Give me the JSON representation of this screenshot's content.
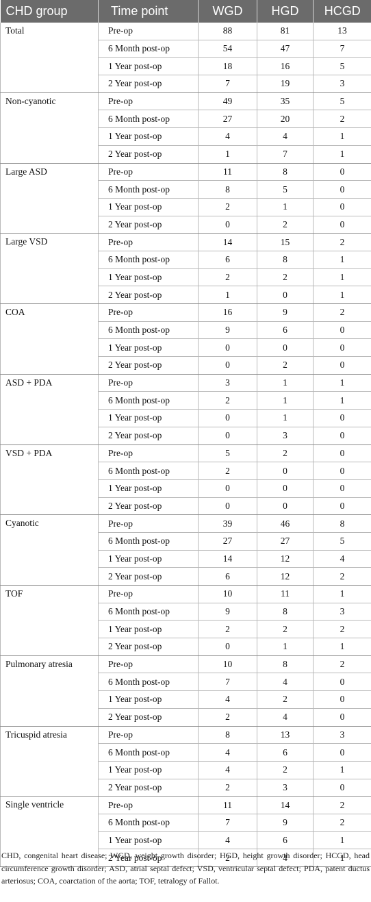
{
  "headers": [
    "CHD group",
    "Time point",
    "WGD",
    "HGD",
    "HCGD"
  ],
  "time_points": [
    "Pre-op",
    "6 Month post-op",
    "1 Year post-op",
    "2 Year post-op"
  ],
  "groups": [
    {
      "name": "Total",
      "rows": [
        [
          "88",
          "81",
          "13"
        ],
        [
          "54",
          "47",
          "7"
        ],
        [
          "18",
          "16",
          "5"
        ],
        [
          "7",
          "19",
          "3"
        ]
      ]
    },
    {
      "name": "Non-cyanotic",
      "rows": [
        [
          "49",
          "35",
          "5"
        ],
        [
          "27",
          "20",
          "2"
        ],
        [
          "4",
          "4",
          "1"
        ],
        [
          "1",
          "7",
          "1"
        ]
      ]
    },
    {
      "name": "Large ASD",
      "rows": [
        [
          "11",
          "8",
          "0"
        ],
        [
          "8",
          "5",
          "0"
        ],
        [
          "2",
          "1",
          "0"
        ],
        [
          "0",
          "2",
          "0"
        ]
      ]
    },
    {
      "name": "Large VSD",
      "rows": [
        [
          "14",
          "15",
          "2"
        ],
        [
          "6",
          "8",
          "1"
        ],
        [
          "2",
          "2",
          "1"
        ],
        [
          "1",
          "0",
          "1"
        ]
      ]
    },
    {
      "name": "COA",
      "rows": [
        [
          "16",
          "9",
          "2"
        ],
        [
          "9",
          "6",
          "0"
        ],
        [
          "0",
          "0",
          "0"
        ],
        [
          "0",
          "2",
          "0"
        ]
      ]
    },
    {
      "name": "ASD + PDA",
      "rows": [
        [
          "3",
          "1",
          "1"
        ],
        [
          "2",
          "1",
          "1"
        ],
        [
          "0",
          "1",
          "0"
        ],
        [
          "0",
          "3",
          "0"
        ]
      ]
    },
    {
      "name": "VSD + PDA",
      "rows": [
        [
          "5",
          "2",
          "0"
        ],
        [
          "2",
          "0",
          "0"
        ],
        [
          "0",
          "0",
          "0"
        ],
        [
          "0",
          "0",
          "0"
        ]
      ]
    },
    {
      "name": "Cyanotic",
      "rows": [
        [
          "39",
          "46",
          "8"
        ],
        [
          "27",
          "27",
          "5"
        ],
        [
          "14",
          "12",
          "4"
        ],
        [
          "6",
          "12",
          "2"
        ]
      ]
    },
    {
      "name": "TOF",
      "rows": [
        [
          "10",
          "11",
          "1"
        ],
        [
          "9",
          "8",
          "3"
        ],
        [
          "2",
          "2",
          "2"
        ],
        [
          "0",
          "1",
          "1"
        ]
      ]
    },
    {
      "name": "Pulmonary atresia",
      "rows": [
        [
          "10",
          "8",
          "2"
        ],
        [
          "7",
          "4",
          "0"
        ],
        [
          "4",
          "2",
          "0"
        ],
        [
          "2",
          "4",
          "0"
        ]
      ]
    },
    {
      "name": "Tricuspid atresia",
      "rows": [
        [
          "8",
          "13",
          "3"
        ],
        [
          "4",
          "6",
          "0"
        ],
        [
          "4",
          "2",
          "1"
        ],
        [
          "2",
          "3",
          "0"
        ]
      ]
    },
    {
      "name": "Single ventricle",
      "rows": [
        [
          "11",
          "14",
          "2"
        ],
        [
          "7",
          "9",
          "2"
        ],
        [
          "4",
          "6",
          "1"
        ],
        [
          "2",
          "4",
          "1"
        ]
      ]
    }
  ],
  "footnote": "CHD, congenital heart disease; WGD, weight growth disorder; HGD, height growth disorder; HCGD, head circumference growth disorder; ASD, atrial septal defect; VSD, ventricular septal defect; PDA, patent ductus arteriosus; COA, coarctation of the aorta; TOF, tetralogy of Fallot."
}
